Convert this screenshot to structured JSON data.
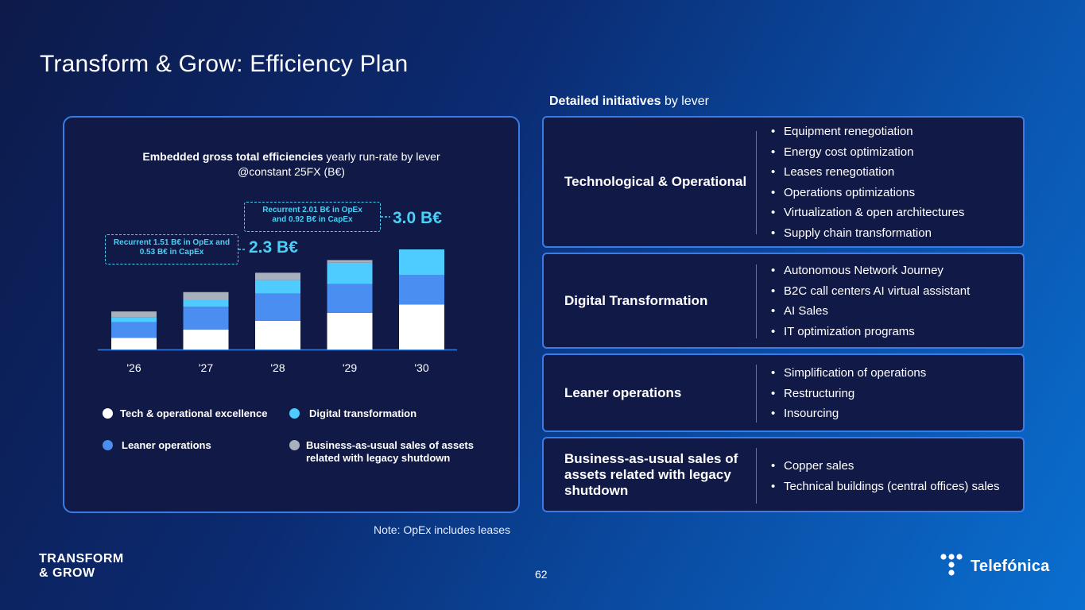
{
  "title": "Transform & Grow: Efficiency Plan",
  "initiatives_header": {
    "bold": "Detailed initiatives",
    "rest": " by lever"
  },
  "chart_panel": {
    "title_bold": "Embedded gross total efficiencies",
    "title_rest": " yearly run-rate by lever",
    "title_line2": "@constant 25FX (B€)",
    "callout_2028": {
      "line1": "Recurrent 1.51 B€ in OpEx and",
      "line2": "0.53 B€ in CapEx",
      "total": "2.3 B€"
    },
    "callout_2030": {
      "line1": "Recurrent 2.01 B€ in OpEx",
      "line2": "and 0.92 B€ in CapEx",
      "total": "3.0 B€"
    }
  },
  "chart_data": {
    "type": "bar",
    "stacked": true,
    "title": "Embedded gross total efficiencies yearly run-rate by lever @constant 25FX (B€)",
    "categories": [
      "'26",
      "'27",
      "'28",
      "'29",
      "'30"
    ],
    "series": [
      {
        "name": "Tech & operational excellence",
        "color": "#ffffff",
        "values": [
          0.35,
          0.6,
          0.86,
          1.1,
          1.35
        ]
      },
      {
        "name": "Leaner operations",
        "color": "#4a8ef2",
        "values": [
          0.47,
          0.68,
          0.82,
          0.86,
          0.88
        ]
      },
      {
        "name": "Digital transformation",
        "color": "#4ecbff",
        "values": [
          0.14,
          0.22,
          0.4,
          0.64,
          0.77
        ]
      },
      {
        "name": "Business-as-usual sales of assets related with legacy shutdown",
        "color": "#a9b0bd",
        "values": [
          0.18,
          0.22,
          0.22,
          0.08,
          0.0
        ]
      }
    ],
    "totals_labeled": {
      "'28": "2.3 B€",
      "'30": "3.0 B€"
    },
    "ylim": [
      0,
      3.2
    ],
    "grid": false,
    "legend_position": "bottom"
  },
  "legend": [
    {
      "label": "Tech & operational excellence",
      "color": "#ffffff"
    },
    {
      "label": "Digital transformation",
      "color": "#4ecbff"
    },
    {
      "label": "Leaner operations",
      "color": "#4a8ef2"
    },
    {
      "label_line1": "Business-as-usual sales of assets",
      "label_line2": "related with legacy shutdown",
      "color": "#a9b0bd"
    }
  ],
  "levers": [
    {
      "name": "Technological & Operational",
      "items": [
        "Equipment renegotiation",
        "Energy cost optimization",
        "Leases renegotiation",
        "Operations optimizations",
        "Virtualization & open architectures",
        "Supply chain transformation"
      ]
    },
    {
      "name": "Digital Transformation",
      "items": [
        "Autonomous Network Journey",
        "B2C call centers AI virtual assistant",
        "AI Sales",
        "IT optimization programs"
      ]
    },
    {
      "name": "Leaner operations",
      "items": [
        "Simplification of operations",
        "Restructuring",
        "Insourcing"
      ]
    },
    {
      "name": "Business-as-usual sales of assets related with legacy shutdown",
      "items": [
        "Copper sales",
        "Technical buildings (central offices) sales"
      ]
    }
  ],
  "note": "Note: OpEx includes leases",
  "brand": {
    "line1": "TRANSFORM",
    "line2": "& GROW"
  },
  "page_number": "62",
  "logo_text": "Telefónica",
  "colors": {
    "panel_bg": "#111a47",
    "panel_border": "#3b7be6",
    "accent_cyan": "#4ad0f5"
  }
}
